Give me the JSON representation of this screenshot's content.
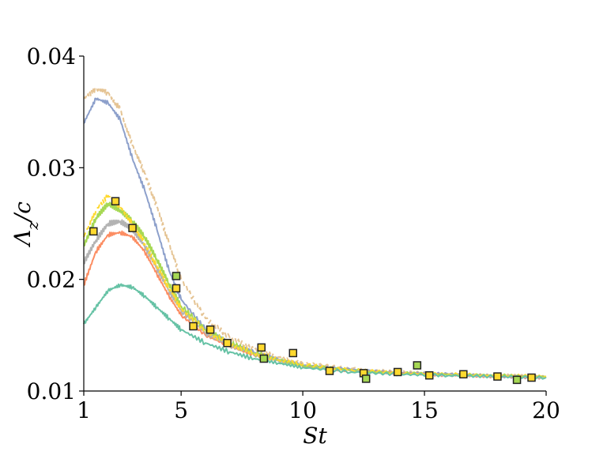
{
  "chart_data": {
    "type": "line",
    "xlabel": "St",
    "ylabel": "Λz/c",
    "ylabel_main": "Λ",
    "ylabel_sub": "z",
    "ylabel_tail": "/c",
    "xlim": [
      1,
      20
    ],
    "ylim": [
      0.01,
      0.04
    ],
    "x_ticks": [
      1,
      5,
      10,
      15,
      20
    ],
    "y_ticks": [
      0.01,
      0.02,
      0.03,
      0.04
    ],
    "x_tick_labels": [
      "1",
      "5",
      "10",
      "15",
      "20"
    ],
    "y_tick_labels": [
      "0.01",
      "0.02",
      "0.03",
      "0.04"
    ],
    "grid": false,
    "series": [
      {
        "color": "#e5c494",
        "dash": "6,4",
        "x": [
          1,
          1.5,
          2,
          2.5,
          3,
          3.5,
          4,
          4.5,
          5,
          6,
          7,
          8,
          9,
          10,
          12,
          14,
          16,
          18,
          20
        ],
        "values": [
          0.0362,
          0.037,
          0.0367,
          0.0352,
          0.032,
          0.0295,
          0.0265,
          0.0232,
          0.02,
          0.0165,
          0.0148,
          0.0137,
          0.013,
          0.0125,
          0.012,
          0.0117,
          0.0115,
          0.0114,
          0.0113
        ]
      },
      {
        "color": "#8da0cb",
        "dash": "",
        "x": [
          1,
          1.5,
          2,
          2.5,
          3,
          3.5,
          4,
          4.5,
          5,
          6,
          7,
          8,
          9,
          10,
          12,
          14,
          16,
          18,
          20
        ],
        "values": [
          0.034,
          0.0362,
          0.0358,
          0.0343,
          0.0308,
          0.028,
          0.0245,
          0.0208,
          0.0182,
          0.0155,
          0.0142,
          0.0134,
          0.0128,
          0.0123,
          0.0119,
          0.0116,
          0.0115,
          0.0113,
          0.0112
        ]
      },
      {
        "color": "#fc8d62",
        "dash": "",
        "x": [
          1,
          1.5,
          2,
          2.5,
          3,
          3.5,
          4,
          4.5,
          5,
          6,
          7,
          8,
          9,
          10,
          12,
          14,
          16,
          18,
          20
        ],
        "values": [
          0.0195,
          0.0225,
          0.024,
          0.0242,
          0.0238,
          0.0225,
          0.0205,
          0.0185,
          0.0168,
          0.015,
          0.014,
          0.0132,
          0.0127,
          0.0122,
          0.0118,
          0.0116,
          0.0114,
          0.0113,
          0.0112
        ]
      },
      {
        "color": "#b3b3b3",
        "dash": "",
        "x": [
          1,
          1.5,
          2,
          2.5,
          3,
          3.5,
          4,
          4.5,
          5,
          6,
          7,
          8,
          9,
          10,
          12,
          14,
          16,
          18,
          20
        ],
        "values": [
          0.0215,
          0.0235,
          0.025,
          0.0252,
          0.0245,
          0.023,
          0.021,
          0.019,
          0.0172,
          0.0152,
          0.0141,
          0.0133,
          0.0127,
          0.0123,
          0.0118,
          0.0116,
          0.0114,
          0.0113,
          0.0112
        ]
      },
      {
        "color": "#a6d854",
        "dash": "",
        "x": [
          1,
          1.5,
          2,
          2.5,
          3,
          3.5,
          4,
          4.5,
          5,
          6,
          7,
          8,
          9,
          10,
          12,
          14,
          16,
          18,
          20
        ],
        "values": [
          0.023,
          0.0255,
          0.0268,
          0.0262,
          0.0252,
          0.0238,
          0.0218,
          0.0196,
          0.0176,
          0.0155,
          0.0143,
          0.0134,
          0.0128,
          0.0123,
          0.0119,
          0.0116,
          0.0115,
          0.0114,
          0.0113
        ]
      },
      {
        "color": "#ffd92f",
        "dash": "6,4",
        "x": [
          1,
          1.5,
          2,
          2.5,
          3,
          3.5,
          4,
          4.5,
          5,
          6,
          7,
          8,
          9,
          10,
          12,
          14,
          16,
          18,
          20
        ],
        "values": [
          0.0238,
          0.0262,
          0.0275,
          0.0265,
          0.025,
          0.0232,
          0.0212,
          0.0192,
          0.0174,
          0.0154,
          0.0142,
          0.0134,
          0.0128,
          0.0124,
          0.0119,
          0.0116,
          0.0115,
          0.0114,
          0.0113
        ]
      },
      {
        "color": "#66c2a5",
        "dash": "",
        "x": [
          1,
          1.5,
          2,
          2.5,
          3,
          3.5,
          4,
          4.5,
          5,
          6,
          7,
          8,
          9,
          10,
          12,
          14,
          16,
          18,
          20
        ],
        "values": [
          0.016,
          0.0175,
          0.019,
          0.0195,
          0.0193,
          0.0185,
          0.0175,
          0.0165,
          0.0155,
          0.0143,
          0.0135,
          0.0129,
          0.0125,
          0.0121,
          0.0117,
          0.0115,
          0.0114,
          0.0113,
          0.0112
        ]
      }
    ],
    "markers": [
      {
        "x": 1.4,
        "y": 0.0243,
        "color": "#ffd92f"
      },
      {
        "x": 2.3,
        "y": 0.027,
        "color": "#ffd92f"
      },
      {
        "x": 3.0,
        "y": 0.0246,
        "color": "#ffd92f"
      },
      {
        "x": 4.8,
        "y": 0.0203,
        "color": "#a6d854"
      },
      {
        "x": 4.8,
        "y": 0.0192,
        "color": "#ffd92f"
      },
      {
        "x": 5.5,
        "y": 0.0158,
        "color": "#ffd92f"
      },
      {
        "x": 6.2,
        "y": 0.0155,
        "color": "#ffd92f"
      },
      {
        "x": 6.9,
        "y": 0.0143,
        "color": "#ffd92f"
      },
      {
        "x": 8.3,
        "y": 0.0139,
        "color": "#ffd92f"
      },
      {
        "x": 8.4,
        "y": 0.0129,
        "color": "#a6d854"
      },
      {
        "x": 9.6,
        "y": 0.0134,
        "color": "#ffd92f"
      },
      {
        "x": 11.1,
        "y": 0.0118,
        "color": "#ffd92f"
      },
      {
        "x": 12.5,
        "y": 0.0116,
        "color": "#ffd92f"
      },
      {
        "x": 12.6,
        "y": 0.0111,
        "color": "#a6d854"
      },
      {
        "x": 13.9,
        "y": 0.0117,
        "color": "#ffd92f"
      },
      {
        "x": 14.7,
        "y": 0.0123,
        "color": "#a6d854"
      },
      {
        "x": 15.2,
        "y": 0.0114,
        "color": "#ffd92f"
      },
      {
        "x": 16.6,
        "y": 0.0115,
        "color": "#ffd92f"
      },
      {
        "x": 18.0,
        "y": 0.0113,
        "color": "#ffd92f"
      },
      {
        "x": 18.8,
        "y": 0.011,
        "color": "#a6d854"
      },
      {
        "x": 19.4,
        "y": 0.0112,
        "color": "#ffd92f"
      }
    ]
  }
}
